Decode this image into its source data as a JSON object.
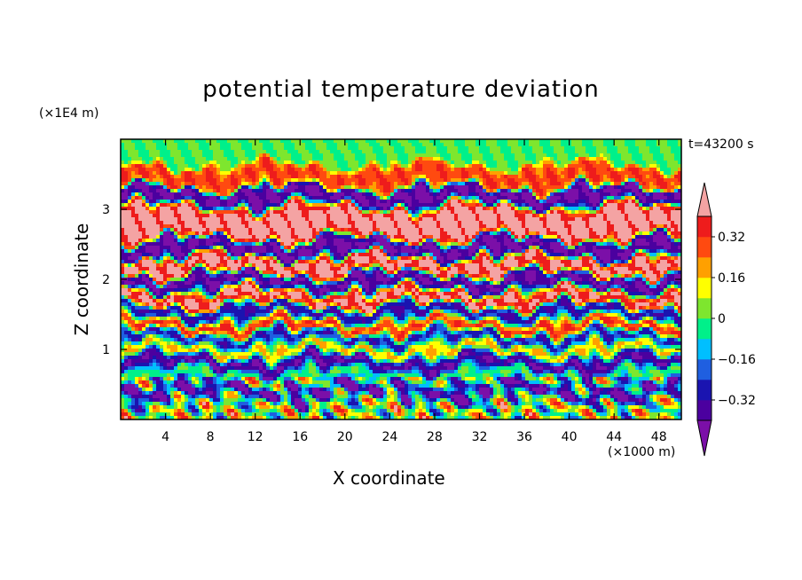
{
  "chart_data": {
    "type": "heatmap",
    "title": "potential temperature deviation",
    "xlabel": "X coordinate",
    "ylabel": "Z coordinate",
    "x_unit": "(×1000 m)",
    "z_unit": "(×1E4 m)",
    "time_label": "t=43200 s",
    "xlim": [
      0,
      50
    ],
    "zlim": [
      0,
      4
    ],
    "x_ticks": [
      4,
      8,
      12,
      16,
      20,
      24,
      28,
      32,
      36,
      40,
      44,
      48
    ],
    "z_ticks": [
      1,
      2,
      3
    ],
    "colorbar": {
      "tick_labels": [
        "0.32",
        "0.16",
        "0",
        "-0.16",
        "-0.32"
      ],
      "tick_values": [
        0.32,
        0.16,
        0,
        -0.16,
        -0.32
      ],
      "levels": [
        -0.4,
        -0.32,
        -0.24,
        -0.16,
        -0.08,
        0,
        0.08,
        0.16,
        0.24,
        0.32,
        0.4
      ],
      "colors": [
        "#7b0fa8",
        "#4b009f",
        "#1a14b0",
        "#1f5fe0",
        "#00bfff",
        "#00f08a",
        "#7ee62e",
        "#ffff00",
        "#ffa000",
        "#ff4a10",
        "#ee1c1c",
        "#f4a3a3"
      ],
      "extend": "both"
    },
    "bands": [
      {
        "z": 3.8,
        "value": 0.0
      },
      {
        "z": 3.45,
        "value": 0.3
      },
      {
        "z": 3.15,
        "value": -0.45
      },
      {
        "z": 2.95,
        "value": 0.45
      },
      {
        "z": 2.7,
        "value": 0.45
      },
      {
        "z": 2.45,
        "value": -0.45
      },
      {
        "z": 2.2,
        "value": 0.45
      },
      {
        "z": 1.95,
        "value": -0.45
      },
      {
        "z": 1.75,
        "value": 0.45
      },
      {
        "z": 1.5,
        "value": -0.4
      },
      {
        "z": 1.35,
        "value": 0.45
      },
      {
        "z": 1.15,
        "value": -0.4
      },
      {
        "z": 1.0,
        "value": 0.3
      },
      {
        "z": 0.82,
        "value": -0.45
      },
      {
        "z": 0.62,
        "value": 0.02
      },
      {
        "z": 0.4,
        "value": -0.35
      },
      {
        "z": 0.2,
        "value": 0.05
      }
    ]
  }
}
